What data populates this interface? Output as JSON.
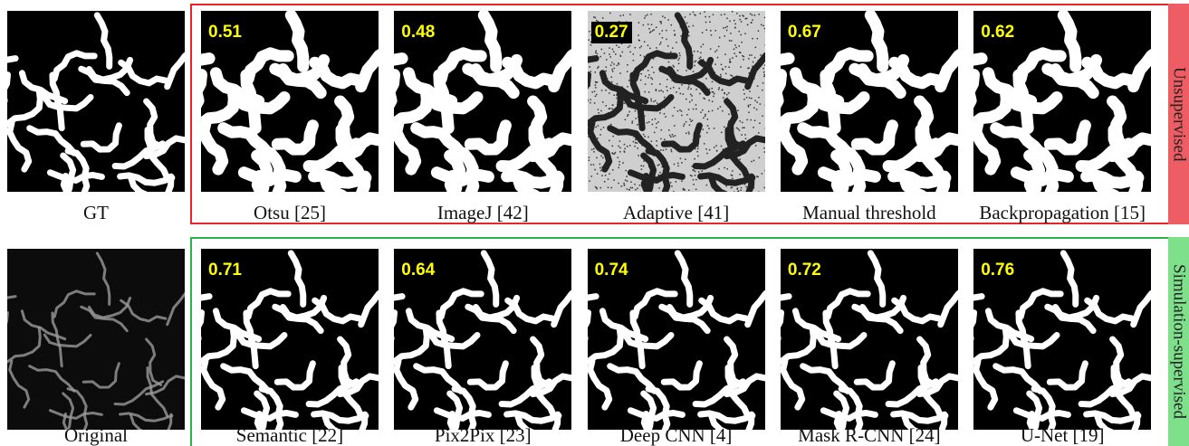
{
  "rows": [
    {
      "group_label": "Unsupervised",
      "reference": {
        "label": "GT"
      },
      "panels": [
        {
          "score": 0.51,
          "label": "Otsu [25]"
        },
        {
          "score": 0.48,
          "label": "ImageJ [42]"
        },
        {
          "score": 0.27,
          "label": "Adaptive [41]"
        },
        {
          "score": 0.67,
          "label": "Manual threshold"
        },
        {
          "score": 0.62,
          "label": "Backpropagation [15]"
        }
      ]
    },
    {
      "group_label": "Simulation-supervised",
      "reference": {
        "label": "Original"
      },
      "panels": [
        {
          "score": 0.71,
          "label": "Semantic [22]"
        },
        {
          "score": 0.64,
          "label": "Pix2Pix [23]"
        },
        {
          "score": 0.74,
          "label": "Deep CNN [4]"
        },
        {
          "score": 0.72,
          "label": "Mask R-CNN [24]"
        },
        {
          "score": 0.76,
          "label": "U-Net [19]"
        }
      ]
    }
  ]
}
